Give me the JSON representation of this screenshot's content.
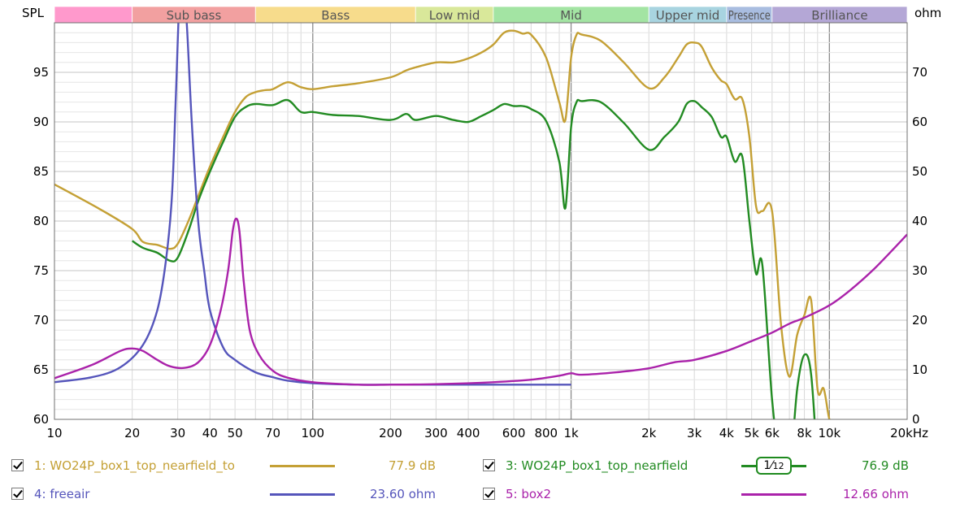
{
  "chart_data": {
    "type": "line",
    "xscale": "log",
    "xlim": [
      10,
      20000
    ],
    "left_axis": {
      "label": "SPL",
      "ylim": [
        60,
        100
      ],
      "ticks": [
        60,
        65,
        70,
        75,
        80,
        85,
        90,
        95
      ]
    },
    "right_axis": {
      "label": "ohm",
      "ylim": [
        0,
        80
      ],
      "ticks": [
        0,
        10,
        20,
        30,
        40,
        50,
        60,
        70
      ]
    },
    "x_ticks": [
      {
        "v": 10,
        "t": "10"
      },
      {
        "v": 20,
        "t": "20"
      },
      {
        "v": 30,
        "t": "30"
      },
      {
        "v": 40,
        "t": "40"
      },
      {
        "v": 50,
        "t": "50"
      },
      {
        "v": 70,
        "t": "70"
      },
      {
        "v": 100,
        "t": "100"
      },
      {
        "v": 200,
        "t": "200"
      },
      {
        "v": 300,
        "t": "300"
      },
      {
        "v": 400,
        "t": "400"
      },
      {
        "v": 600,
        "t": "600"
      },
      {
        "v": 800,
        "t": "800"
      },
      {
        "v": 1000,
        "t": "1k"
      },
      {
        "v": 2000,
        "t": "2k"
      },
      {
        "v": 3000,
        "t": "3k"
      },
      {
        "v": 4000,
        "t": "4k"
      },
      {
        "v": 5000,
        "t": "5k"
      },
      {
        "v": 6000,
        "t": "6k"
      },
      {
        "v": 8000,
        "t": "8k"
      },
      {
        "v": 10000,
        "t": "10k"
      },
      {
        "v": 20000,
        "t": "20kHz"
      }
    ],
    "bands": [
      {
        "label": "",
        "from": 10,
        "to": 20,
        "color": "#ff99cc"
      },
      {
        "label": "Sub bass",
        "from": 20,
        "to": 60,
        "color": "#f2a0a0"
      },
      {
        "label": "Bass",
        "from": 60,
        "to": 250,
        "color": "#f7dc8c"
      },
      {
        "label": "Low mid",
        "from": 250,
        "to": 500,
        "color": "#d9e89a"
      },
      {
        "label": "Mid",
        "from": 500,
        "to": 2000,
        "color": "#a3e4a3"
      },
      {
        "label": "Upper mid",
        "from": 2000,
        "to": 4000,
        "color": "#a8d4e0"
      },
      {
        "label": "Presence",
        "from": 4000,
        "to": 6000,
        "color": "#a9bde0"
      },
      {
        "label": "Brilliance",
        "from": 6000,
        "to": 20000,
        "color": "#b4a7d6"
      }
    ],
    "grid": true,
    "series": [
      {
        "name": "1: WO24P_box1_top_nearfield_to",
        "axis": "left",
        "color": "#c4a035",
        "x": [
          10,
          15,
          20,
          22,
          25,
          28,
          30,
          33,
          36,
          40,
          45,
          50,
          55,
          60,
          65,
          70,
          80,
          90,
          100,
          120,
          150,
          200,
          230,
          250,
          300,
          350,
          400,
          450,
          500,
          550,
          600,
          650,
          700,
          800,
          900,
          950,
          1000,
          1050,
          1100,
          1300,
          1600,
          2000,
          2300,
          2600,
          2800,
          3000,
          3200,
          3500,
          3800,
          4000,
          4300,
          4600,
          4900,
          5200,
          5500,
          6000,
          6500,
          7000,
          7500,
          8000,
          8500,
          9000,
          9500,
          10000,
          10500
        ],
        "y": [
          83.7,
          81.2,
          79.2,
          77.9,
          77.6,
          77.2,
          77.7,
          80,
          82.5,
          85.5,
          88.5,
          91,
          92.5,
          93,
          93.2,
          93.3,
          94,
          93.5,
          93.3,
          93.6,
          93.9,
          94.5,
          95.2,
          95.5,
          96,
          96,
          96.4,
          97,
          97.8,
          99,
          99.2,
          98.9,
          98.8,
          96.5,
          92,
          90.2,
          96.5,
          98.8,
          98.8,
          98.2,
          96,
          93.4,
          94.5,
          96.5,
          97.8,
          98,
          97.6,
          95.5,
          94.2,
          93.8,
          92.3,
          92.3,
          88.5,
          81.5,
          81,
          81,
          69.5,
          64.3,
          68.5,
          70.5,
          72,
          63,
          63.1,
          60,
          59
        ]
      },
      {
        "name": "3: WO24P_box1_top_nearfield",
        "axis": "left",
        "color": "#228b22",
        "x": [
          20,
          22,
          25,
          28,
          30,
          33,
          36,
          40,
          45,
          50,
          55,
          60,
          70,
          80,
          90,
          100,
          120,
          150,
          200,
          230,
          250,
          300,
          350,
          400,
          450,
          500,
          550,
          600,
          650,
          700,
          800,
          900,
          950,
          1000,
          1050,
          1100,
          1300,
          1600,
          2000,
          2300,
          2600,
          2800,
          3000,
          3200,
          3500,
          3800,
          4000,
          4300,
          4600,
          4900,
          5200,
          5500,
          6000,
          6500,
          7000,
          7500,
          8000,
          8500,
          9000
        ],
        "y": [
          78,
          77.3,
          76.8,
          76,
          76.3,
          79,
          82,
          85,
          88,
          90.5,
          91.5,
          91.8,
          91.7,
          92.2,
          91,
          91,
          90.7,
          90.6,
          90.2,
          90.8,
          90.2,
          90.6,
          90.2,
          90,
          90.6,
          91.2,
          91.8,
          91.6,
          91.6,
          91.3,
          90.1,
          86,
          81.3,
          89.5,
          92,
          92.1,
          92,
          89.9,
          87.2,
          88.5,
          90,
          91.8,
          92.1,
          91.5,
          90.5,
          88.5,
          88.5,
          86,
          86.5,
          80,
          74.7,
          75.6,
          62,
          55,
          54.5,
          63,
          66.5,
          64.5,
          55
        ]
      },
      {
        "name": "4: freeair",
        "axis": "right",
        "color": "#5555bb",
        "x": [
          10,
          14,
          18,
          22,
          25,
          27,
          28.5,
          29.5,
          30.5,
          31.5,
          32.5,
          34,
          36,
          38,
          40,
          45,
          50,
          60,
          70,
          80,
          100,
          150,
          200,
          500,
          1000
        ],
        "y": [
          7.5,
          8.5,
          10.5,
          15,
          22,
          32,
          45,
          65,
          85,
          85,
          80,
          60,
          40,
          30,
          22,
          14.5,
          12,
          9.5,
          8.5,
          7.8,
          7.3,
          7,
          7,
          7,
          7
        ]
      },
      {
        "name": "5: box2",
        "axis": "right",
        "color": "#aa22aa",
        "x": [
          10,
          14,
          18,
          20,
          22,
          25,
          28,
          32,
          36,
          40,
          44,
          47,
          49,
          50.5,
          52,
          54,
          57,
          62,
          70,
          80,
          100,
          150,
          200,
          300,
          500,
          700,
          900,
          1000,
          1100,
          1500,
          2000,
          2500,
          3000,
          4000,
          5000,
          6000,
          7000,
          8000,
          10000,
          12000,
          15000,
          20000
        ],
        "y": [
          8.3,
          11,
          13.8,
          14.3,
          13.8,
          12,
          10.7,
          10.4,
          11.5,
          15,
          22,
          30,
          38,
          40.5,
          38,
          28,
          18,
          13,
          9.8,
          8.4,
          7.5,
          7,
          7,
          7.1,
          7.5,
          8,
          8.8,
          9.3,
          9,
          9.5,
          10.3,
          11.5,
          12,
          13.8,
          15.8,
          17.5,
          19.3,
          20.5,
          23,
          26,
          30.5,
          37.3
        ]
      }
    ]
  },
  "legend": [
    {
      "label": "1: WO24P_box1_top_nearfield_to",
      "value": "77.9 dB",
      "color": "#c4a035"
    },
    {
      "label": "3: WO24P_box1_top_nearfield",
      "value": "76.9 dB",
      "color": "#228b22",
      "smoothing_num": "1",
      "smoothing_den": "12"
    },
    {
      "label": "4: freeair",
      "value": "23.60 ohm",
      "color": "#5555bb"
    },
    {
      "label": "5: box2",
      "value": "12.66 ohm",
      "color": "#aa22aa"
    }
  ]
}
